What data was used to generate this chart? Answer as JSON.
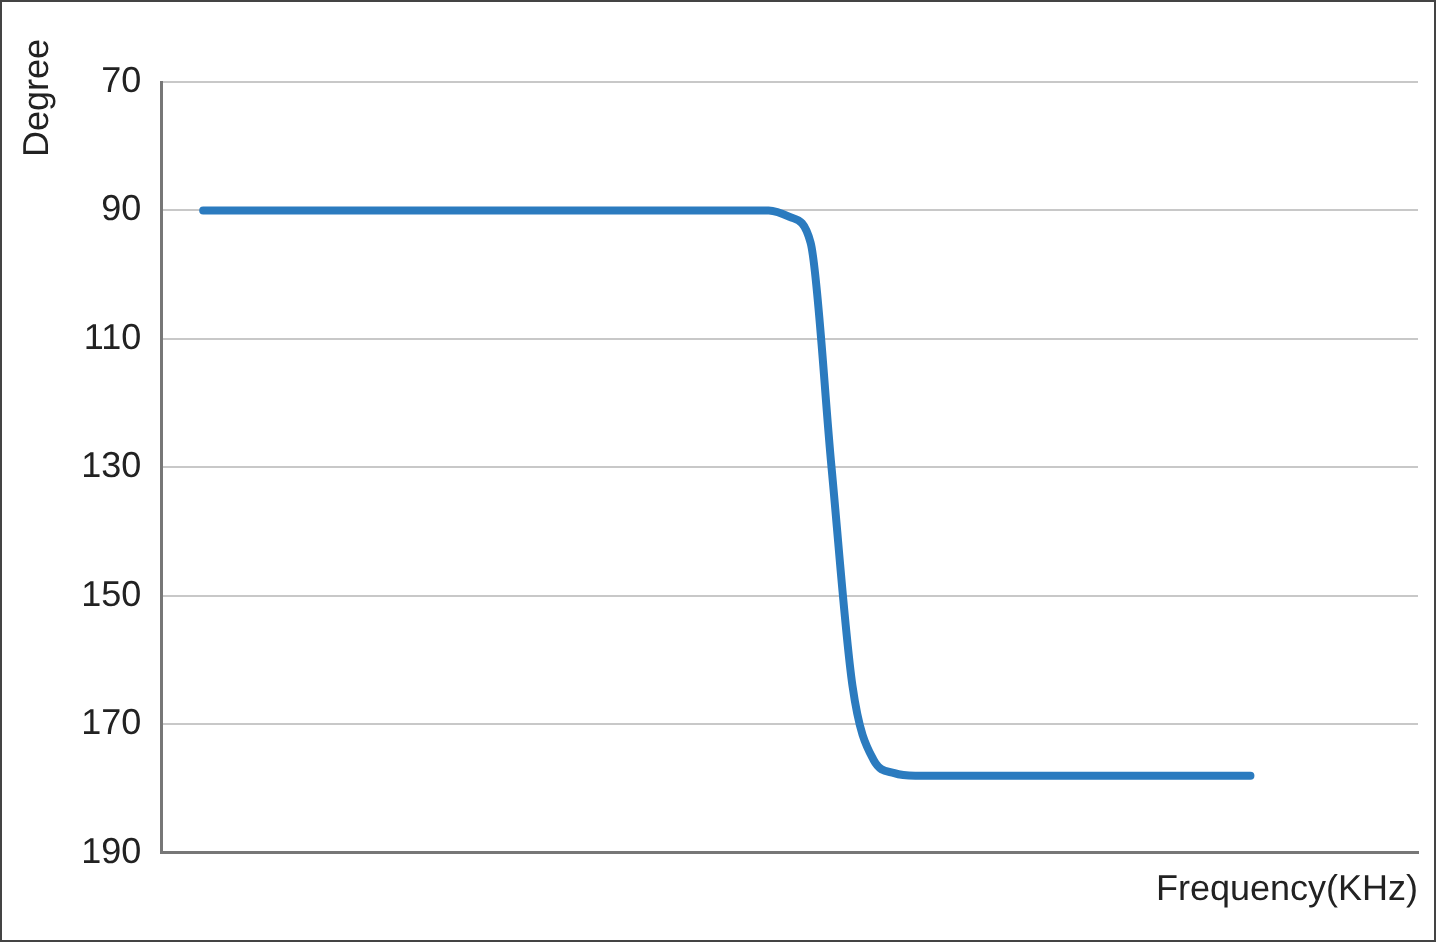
{
  "chart_data": {
    "type": "line",
    "xlabel": "Frequency(KHz)",
    "ylabel": "Degree",
    "categories": [
      null,
      null,
      null,
      null,
      null,
      null,
      null,
      null,
      null,
      null,
      null,
      null,
      null,
      null,
      null,
      null,
      null,
      null,
      null,
      null,
      null,
      null,
      null,
      null,
      null,
      null,
      null,
      null,
      null,
      null,
      null,
      null,
      null,
      null,
      null,
      null,
      null,
      null,
      null,
      null,
      null,
      null,
      null,
      null,
      null,
      null,
      null,
      null,
      null,
      null,
      null,
      null,
      null,
      null,
      null,
      null,
      null,
      null,
      null,
      null,
      null
    ],
    "series": [
      {
        "color": "#2b7bbf",
        "values": [
          null,
          null,
          90,
          90,
          90,
          90,
          90,
          90,
          90,
          90,
          90,
          90,
          90,
          90,
          90,
          90,
          90,
          90,
          90,
          90,
          90,
          90,
          90,
          90,
          90,
          90,
          90,
          90,
          90,
          90,
          91,
          95,
          130,
          164,
          175.5,
          177.6,
          178,
          178,
          178,
          178,
          178,
          178,
          178,
          178,
          178,
          178,
          178,
          178,
          178,
          178,
          178,
          178,
          178,
          null,
          null,
          null,
          null,
          null,
          null,
          null,
          null
        ]
      }
    ],
    "ylim": [
      190,
      70
    ],
    "yticks": [
      70,
      90,
      110,
      130,
      150,
      170,
      190
    ],
    "grid": "y",
    "tick_labels": "y",
    "marker": "none",
    "line_style": "solid"
  }
}
